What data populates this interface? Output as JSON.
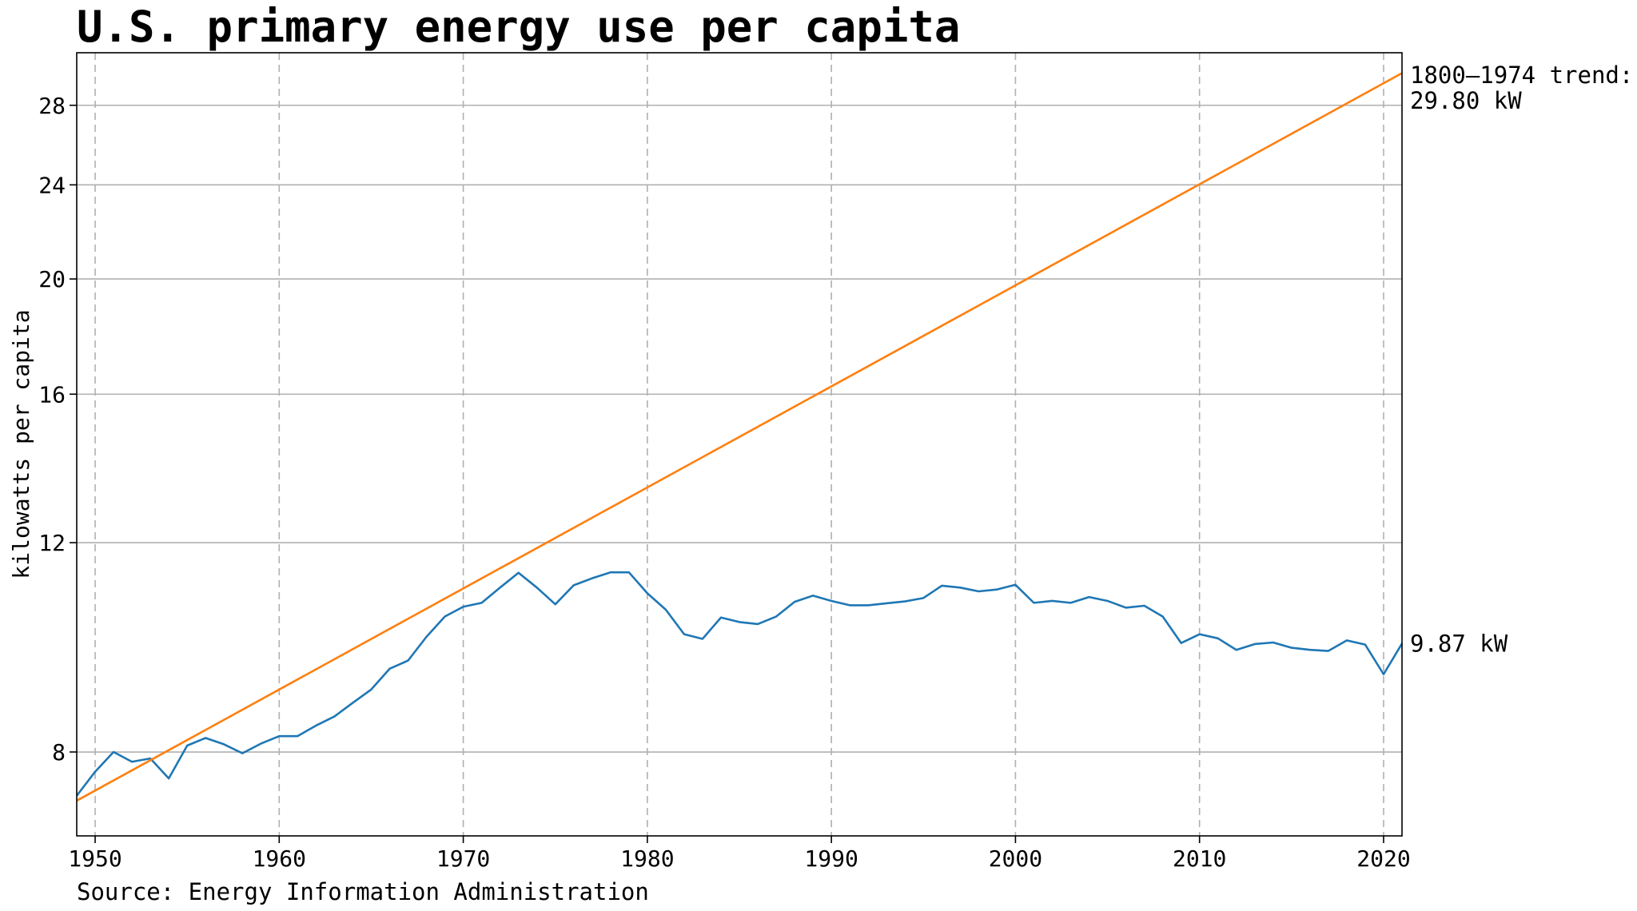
{
  "chart_data": {
    "type": "line",
    "title": "U.S. primary energy use per capita",
    "ylabel": "kilowatts per capita",
    "xlabel": "",
    "source": "Source: Energy Information Administration",
    "y_scale": "log",
    "xlim": [
      1949,
      2021
    ],
    "ylim": [
      6.8,
      31.0
    ],
    "x_ticks": [
      1950,
      1960,
      1970,
      1980,
      1990,
      2000,
      2010,
      2020
    ],
    "y_ticks": [
      8,
      12,
      16,
      20,
      24,
      28
    ],
    "x_tick_labels": [
      "1950",
      "1960",
      "1970",
      "1980",
      "1990",
      "2000",
      "2010",
      "2020"
    ],
    "y_tick_labels": [
      "8",
      "12",
      "16",
      "20",
      "24",
      "28"
    ],
    "grid": {
      "x": "dashed",
      "y": "solid"
    },
    "series": [
      {
        "name": "",
        "color": "#1f77b4",
        "x": [
          1949,
          1950,
          1951,
          1952,
          1953,
          1954,
          1955,
          1956,
          1957,
          1958,
          1959,
          1960,
          1961,
          1962,
          1963,
          1964,
          1965,
          1966,
          1967,
          1968,
          1969,
          1970,
          1971,
          1972,
          1973,
          1974,
          1975,
          1976,
          1977,
          1978,
          1979,
          1980,
          1981,
          1982,
          1983,
          1984,
          1985,
          1986,
          1987,
          1988,
          1989,
          1990,
          1991,
          1992,
          1993,
          1994,
          1995,
          1996,
          1997,
          1998,
          1999,
          2000,
          2001,
          2002,
          2003,
          2004,
          2005,
          2006,
          2007,
          2008,
          2009,
          2010,
          2011,
          2012,
          2013,
          2014,
          2015,
          2016,
          2017,
          2018,
          2019,
          2020,
          2021
        ],
        "y": [
          7.35,
          7.7,
          8.0,
          7.85,
          7.9,
          7.6,
          8.1,
          8.22,
          8.12,
          7.98,
          8.13,
          8.25,
          8.25,
          8.42,
          8.57,
          8.8,
          9.03,
          9.4,
          9.55,
          10.0,
          10.4,
          10.6,
          10.68,
          11.0,
          11.32,
          11.0,
          10.65,
          11.05,
          11.2,
          11.33,
          11.33,
          10.88,
          10.54,
          10.05,
          9.96,
          10.38,
          10.29,
          10.25,
          10.4,
          10.7,
          10.83,
          10.72,
          10.63,
          10.63,
          10.67,
          10.71,
          10.78,
          11.04,
          11.0,
          10.92,
          10.96,
          11.06,
          10.68,
          10.72,
          10.68,
          10.8,
          10.72,
          10.58,
          10.62,
          10.4,
          9.88,
          10.05,
          9.97,
          9.75,
          9.86,
          9.89,
          9.79,
          9.75,
          9.73,
          9.93,
          9.85,
          9.3,
          9.87
        ]
      },
      {
        "name": "1800–1974 trend",
        "color": "#ff7f0e",
        "x": [
          1949,
          2021
        ],
        "y": [
          7.28,
          29.8
        ]
      }
    ],
    "annotations": [
      {
        "text": "1800–1974 trend:",
        "value": 29.8
      },
      {
        "text": "29.80 kW",
        "value": 29.8
      },
      {
        "text": "9.87 kW",
        "value": 9.87
      }
    ]
  }
}
